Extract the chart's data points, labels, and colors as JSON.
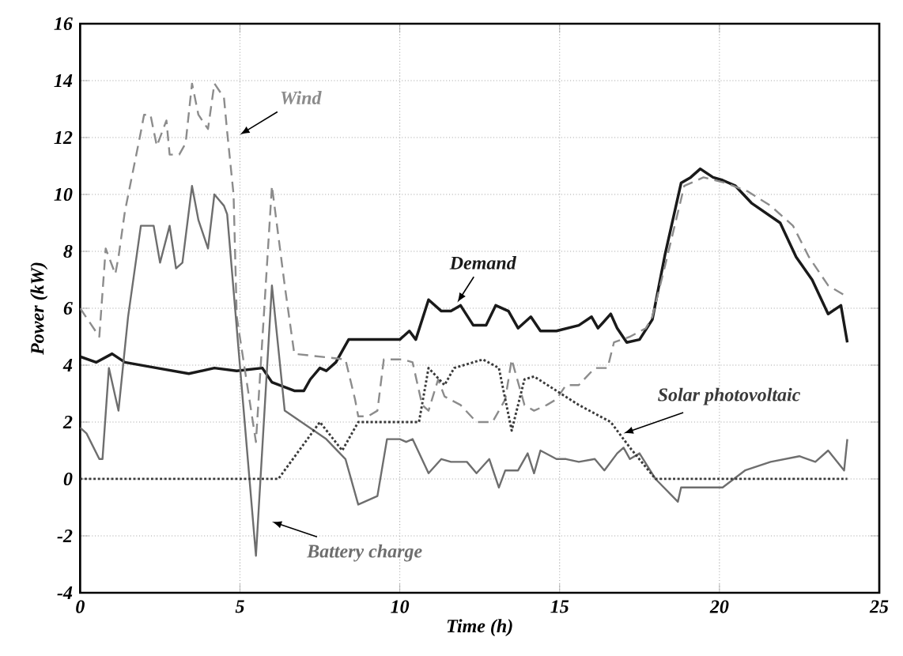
{
  "chart_data": {
    "type": "line",
    "xlabel": "Time (h)",
    "ylabel": "Power (kW)",
    "xlim": [
      0,
      25
    ],
    "ylim": [
      -4,
      16
    ],
    "xticks": [
      0,
      5,
      10,
      15,
      20,
      25
    ],
    "yticks": [
      -4,
      -2,
      0,
      2,
      4,
      6,
      8,
      10,
      12,
      14,
      16
    ],
    "grid": true,
    "series": [
      {
        "name": "Demand",
        "color": "#1a1a1a",
        "line_style": "solid",
        "x": [
          0,
          0.5,
          1.0,
          1.4,
          2.4,
          3.4,
          4.2,
          4.9,
          5.7,
          6.0,
          6.7,
          7.0,
          7.2,
          7.5,
          7.7,
          8.0,
          8.4,
          10.0,
          10.3,
          10.5,
          10.9,
          11.3,
          11.6,
          11.9,
          12.3,
          12.7,
          13.0,
          13.4,
          13.7,
          14.1,
          14.4,
          14.9,
          15.6,
          16.0,
          16.2,
          16.6,
          16.8,
          17.1,
          17.5,
          17.9,
          18.3,
          18.8,
          19.1,
          19.4,
          19.8,
          20.1,
          20.5,
          21.0,
          21.9,
          22.4,
          22.9,
          23.4,
          23.8,
          24.0
        ],
        "values": [
          4.3,
          4.1,
          4.4,
          4.1,
          3.9,
          3.7,
          3.9,
          3.8,
          3.9,
          3.4,
          3.1,
          3.1,
          3.5,
          3.9,
          3.8,
          4.1,
          4.9,
          4.9,
          5.2,
          4.9,
          6.3,
          5.9,
          5.9,
          6.1,
          5.4,
          5.4,
          6.1,
          5.9,
          5.3,
          5.7,
          5.2,
          5.2,
          5.4,
          5.7,
          5.3,
          5.8,
          5.3,
          4.8,
          4.9,
          5.6,
          7.9,
          10.4,
          10.6,
          10.9,
          10.6,
          10.5,
          10.3,
          9.7,
          9.0,
          7.8,
          7.0,
          5.8,
          6.1,
          4.8
        ]
      },
      {
        "name": "Wind",
        "color": "#8c8c8c",
        "line_style": "dashed",
        "x": [
          0,
          0.6,
          0.8,
          1.1,
          1.2,
          1.4,
          1.9,
          2.0,
          2.2,
          2.4,
          2.7,
          2.8,
          3.1,
          3.3,
          3.5,
          3.7,
          4.0,
          4.2,
          4.5,
          4.6,
          4.8,
          4.9,
          5.5,
          6.0,
          6.4,
          6.7,
          8.3,
          8.6,
          8.7,
          9.0,
          9.3,
          9.5,
          10.1,
          10.4,
          10.7,
          10.9,
          11.2,
          11.4,
          11.9,
          12.4,
          12.9,
          13.3,
          13.5,
          13.9,
          14.2,
          14.6,
          14.9,
          15.2,
          15.6,
          16.1,
          16.5,
          16.7,
          17.2,
          17.7,
          17.9,
          18.3,
          18.9,
          19.5,
          20.2,
          20.9,
          21.6,
          22.3,
          22.8,
          23.4,
          24.0
        ],
        "values": [
          6.0,
          5.0,
          8.1,
          7.2,
          7.8,
          9.4,
          12.2,
          12.8,
          12.8,
          11.7,
          12.6,
          11.4,
          11.4,
          11.8,
          13.9,
          12.8,
          12.3,
          13.9,
          13.4,
          12.2,
          10.0,
          5.7,
          1.3,
          10.3,
          6.8,
          4.4,
          4.2,
          2.8,
          2.2,
          2.2,
          2.4,
          4.2,
          4.2,
          4.1,
          2.6,
          2.4,
          3.5,
          2.9,
          2.6,
          2.0,
          2.0,
          2.8,
          4.2,
          2.6,
          2.4,
          2.6,
          2.8,
          3.3,
          3.3,
          3.9,
          3.9,
          4.8,
          5.0,
          5.3,
          5.7,
          7.5,
          10.3,
          10.6,
          10.4,
          10.1,
          9.6,
          8.9,
          7.8,
          6.8,
          6.4
        ]
      },
      {
        "name": "Battery charge",
        "color": "#6e6e6e",
        "line_style": "solid",
        "x": [
          0,
          0.2,
          0.6,
          0.7,
          0.9,
          1.2,
          1.5,
          1.9,
          2.3,
          2.5,
          2.8,
          3.0,
          3.2,
          3.5,
          3.7,
          4.0,
          4.2,
          4.5,
          4.6,
          5.5,
          6.0,
          6.4,
          7.7,
          8.3,
          8.7,
          9.3,
          9.6,
          10.0,
          10.2,
          10.4,
          10.9,
          11.3,
          11.6,
          12.1,
          12.4,
          12.8,
          13.1,
          13.3,
          13.7,
          14.0,
          14.2,
          14.4,
          14.9,
          15.2,
          15.6,
          16.1,
          16.4,
          16.8,
          17.0,
          17.2,
          17.5,
          18.0,
          18.7,
          18.8,
          19.5,
          20.1,
          20.8,
          21.6,
          22.5,
          23.0,
          23.4,
          23.9,
          24.0
        ],
        "values": [
          1.8,
          1.6,
          0.7,
          0.7,
          3.9,
          2.4,
          5.7,
          8.9,
          8.9,
          7.6,
          8.9,
          7.4,
          7.6,
          10.3,
          9.1,
          8.1,
          10.0,
          9.6,
          9.3,
          -2.7,
          6.8,
          2.4,
          1.4,
          0.7,
          -0.9,
          -0.6,
          1.4,
          1.4,
          1.3,
          1.4,
          0.2,
          0.7,
          0.6,
          0.6,
          0.2,
          0.7,
          -0.3,
          0.3,
          0.3,
          0.9,
          0.2,
          1.0,
          0.7,
          0.7,
          0.6,
          0.7,
          0.3,
          0.9,
          1.1,
          0.7,
          0.9,
          0.0,
          -0.8,
          -0.3,
          -0.3,
          -0.3,
          0.3,
          0.6,
          0.8,
          0.6,
          1.0,
          0.3,
          1.4
        ]
      },
      {
        "name": "Solar photovoltaic",
        "color": "#3a3a3a",
        "line_style": "dotted",
        "x": [
          0,
          6.2,
          7.5,
          8.2,
          8.7,
          10.6,
          10.9,
          11.4,
          11.7,
          12.3,
          12.6,
          13.1,
          13.5,
          13.9,
          14.2,
          14.9,
          15.6,
          16.6,
          17.2,
          18.0,
          24.0
        ],
        "values": [
          0,
          0,
          2.0,
          1.0,
          2.0,
          2.0,
          3.9,
          3.3,
          3.9,
          4.1,
          4.2,
          3.9,
          1.7,
          3.5,
          3.6,
          3.1,
          2.6,
          2.0,
          1.1,
          0,
          0
        ]
      }
    ]
  }
}
